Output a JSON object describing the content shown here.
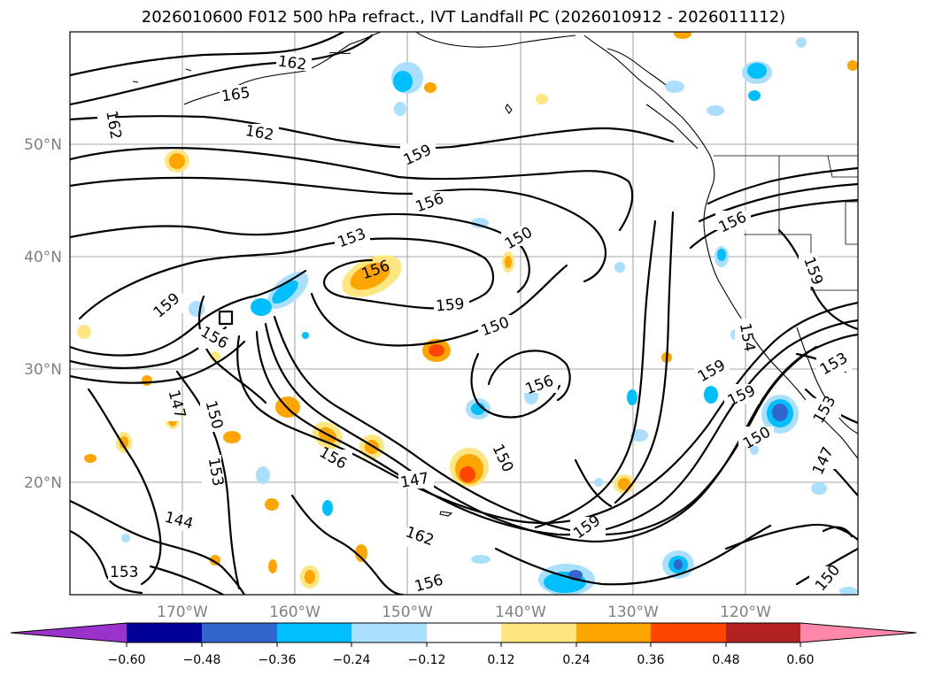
{
  "title": "2026010600 F012 500 hPa refract., IVT Landfall PC (2026010912 - 2026011112)",
  "map": {
    "lon_labels": [
      "170°W",
      "160°W",
      "150°W",
      "140°W",
      "130°W",
      "120°W"
    ],
    "lat_labels": [
      "50°N",
      "40°N",
      "30°N",
      "20°N"
    ],
    "contour_labels": [
      "162",
      "165",
      "162",
      "162",
      "159",
      "156",
      "153",
      "150",
      "156",
      "159",
      "159",
      "156",
      "150",
      "147",
      "150",
      "153",
      "156",
      "147",
      "144",
      "153",
      "150",
      "162",
      "156",
      "159",
      "156",
      "159",
      "159",
      "156",
      "150",
      "153",
      "153",
      "147",
      "150",
      "159",
      "154"
    ]
  },
  "colorbar": {
    "tick_labels": [
      "−0.60",
      "−0.48",
      "−0.36",
      "−0.24",
      "−0.12",
      "0.12",
      "0.24",
      "0.36",
      "0.48",
      "0.60"
    ],
    "colors": [
      "#9933cc",
      "#000099",
      "#3366cc",
      "#00bfff",
      "#aadfff",
      "#ffffff",
      "#ffe680",
      "#ffa500",
      "#ff4500",
      "#b22222",
      "#ff88aa"
    ]
  }
}
